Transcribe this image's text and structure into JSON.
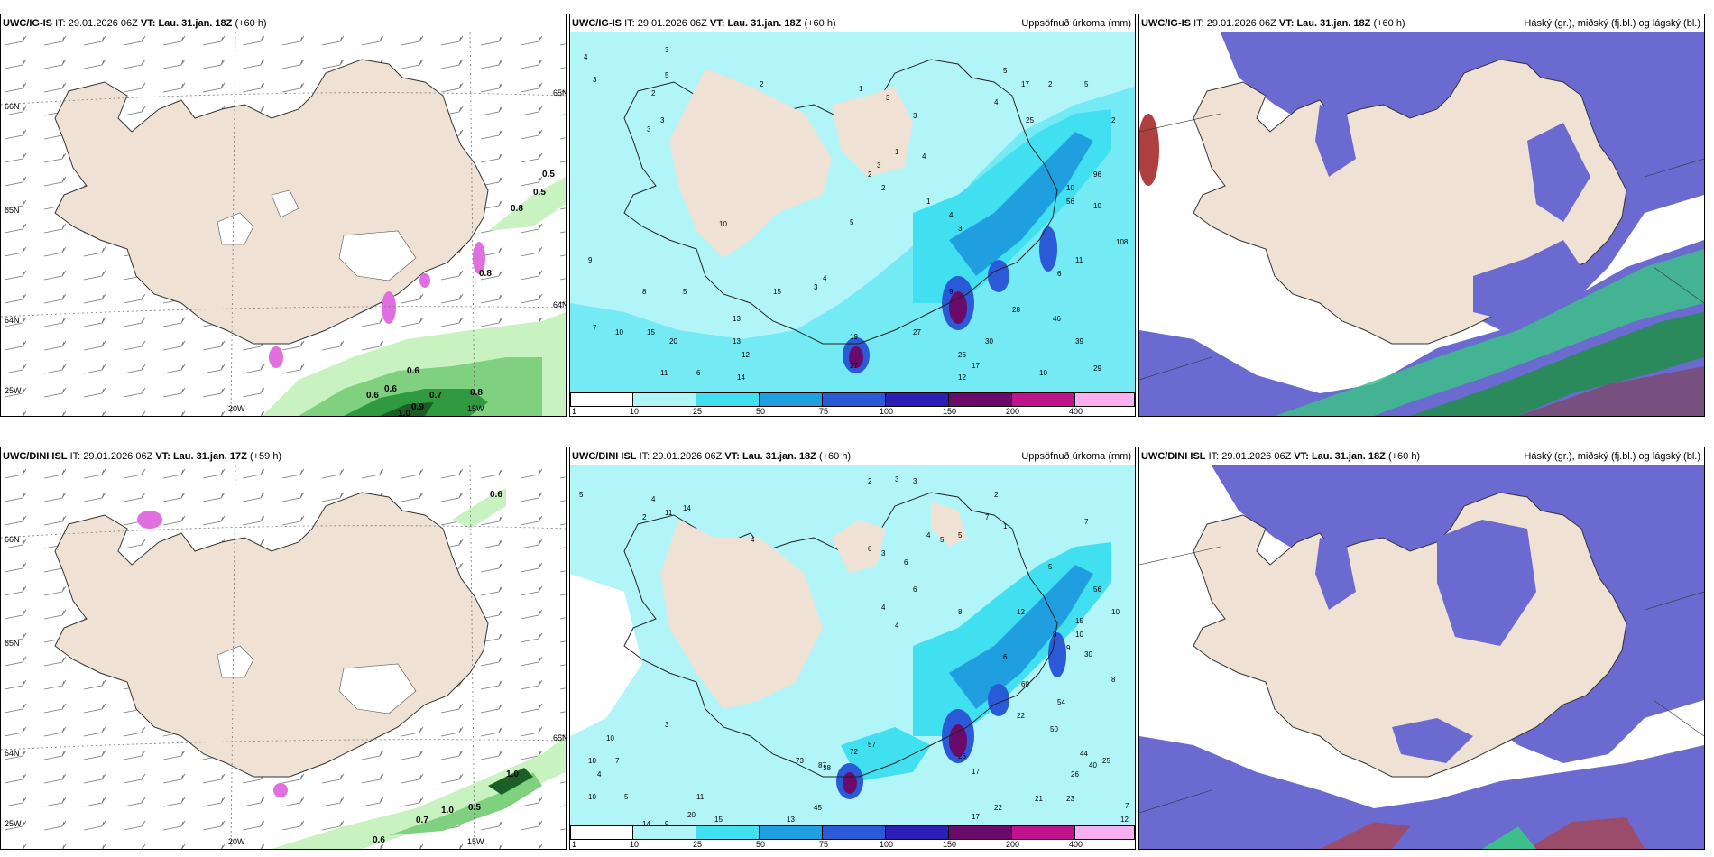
{
  "panels": [
    {
      "id": "top-left",
      "header": {
        "model": "UWC/IG-IS",
        "it_label": "IT:",
        "it_value": "29.01.2026 06Z",
        "vt_label": "VT:",
        "vt_value": "Lau. 31.jan. 18Z",
        "lead": "(+60 h)",
        "right": ""
      },
      "grid_labels": [
        "66N",
        "65N",
        "64N",
        "25W",
        "20W",
        "15W",
        "65N",
        "64N"
      ],
      "values": [
        "0.5",
        "0.5",
        "0.8",
        "0.6",
        "0.8",
        "0.6",
        "0.6",
        "0.7",
        "0.8",
        "0.9",
        "1.0"
      ]
    },
    {
      "id": "top-middle",
      "header": {
        "model": "UWC/IG-IS",
        "it_label": "IT:",
        "it_value": "29.01.2026 06Z",
        "vt_label": "VT:",
        "vt_value": "Lau. 31.jan. 18Z",
        "lead": "(+60 h)",
        "right": "Uppsöfnuð úrkoma (mm)"
      },
      "values": [
        "4",
        "3",
        "3",
        "5",
        "2",
        "3",
        "3",
        "2",
        "3",
        "3",
        "4",
        "2",
        "5",
        "5",
        "2",
        "1",
        "17",
        "25",
        "3",
        "4",
        "1",
        "2",
        "2",
        "1",
        "4",
        "3",
        "9",
        "10",
        "5",
        "8",
        "5",
        "7",
        "10",
        "15",
        "12",
        "4",
        "3",
        "13",
        "15",
        "20",
        "27",
        "9",
        "11",
        "6",
        "14",
        "26",
        "17",
        "30",
        "28",
        "46",
        "39",
        "29",
        "10",
        "12",
        "13",
        "27",
        "25",
        "19",
        "27",
        "96",
        "108",
        "10",
        "10",
        "11",
        "6",
        "56",
        "13",
        "7"
      ],
      "colorbar": {
        "labels": [
          "1",
          "10",
          "25",
          "50",
          "75",
          "100",
          "150",
          "200",
          "400"
        ],
        "colors": [
          "#ffffff",
          "#b2f5f9",
          "#40e0f0",
          "#1f9fe0",
          "#2b5ad8",
          "#2b1fb8",
          "#6a0a6a",
          "#c0148c",
          "#f010b0",
          "#f8b0f0"
        ]
      }
    },
    {
      "id": "top-right",
      "header": {
        "model": "UWC/IG-IS",
        "it_label": "IT:",
        "it_value": "29.01.2026 06Z",
        "vt_label": "VT:",
        "vt_value": "Lau. 31.jan. 18Z",
        "lead": "(+60 h)",
        "right": "Háský (gr.), miðský (fj.bl.) og lágský (bl.)"
      }
    },
    {
      "id": "bottom-left",
      "header": {
        "model": "UWC/DINI ISL",
        "it_label": "IT:",
        "it_value": "29.01.2026 06Z",
        "vt_label": "VT:",
        "vt_value": "Lau. 31.jan. 17Z",
        "lead": "(+59 h)",
        "right": ""
      },
      "grid_labels": [
        "66N",
        "65N",
        "64N",
        "25W",
        "20W",
        "15W",
        "65N"
      ],
      "values": [
        "0.6",
        "1.0",
        "0.5",
        "1.0",
        "0.7",
        "0.6"
      ]
    },
    {
      "id": "bottom-middle",
      "header": {
        "model": "UWC/DINI ISL",
        "it_label": "IT:",
        "it_value": "29.01.2026 06Z",
        "vt_label": "VT:",
        "vt_value": "Lau. 31.jan. 18Z",
        "lead": "(+60 h)",
        "right": "Uppsöfnuð úrkoma (mm)"
      },
      "values": [
        "5",
        "2",
        "4",
        "2",
        "3",
        "3",
        "2",
        "11",
        "14",
        "3",
        "4",
        "4",
        "5",
        "5",
        "6",
        "6",
        "6",
        "7",
        "1",
        "8",
        "7",
        "10",
        "3",
        "4",
        "4",
        "5",
        "8",
        "10",
        "12",
        "7",
        "4",
        "6",
        "8",
        "9",
        "10",
        "15",
        "30",
        "56",
        "60",
        "54",
        "73",
        "87",
        "72",
        "57",
        "45",
        "38",
        "26",
        "17",
        "22",
        "50",
        "44",
        "40",
        "25",
        "26",
        "21",
        "23",
        "22",
        "17",
        "13",
        "12",
        "20",
        "15",
        "9",
        "14",
        "7",
        "5",
        "11",
        "10",
        "10"
      ],
      "colorbar": {
        "labels": [
          "1",
          "10",
          "25",
          "50",
          "75",
          "100",
          "150",
          "200",
          "400"
        ],
        "colors": [
          "#ffffff",
          "#b2f5f9",
          "#40e0f0",
          "#1f9fe0",
          "#2b5ad8",
          "#2b1fb8",
          "#6a0a6a",
          "#c0148c",
          "#f010b0",
          "#f8b0f0"
        ]
      }
    },
    {
      "id": "bottom-right",
      "header": {
        "model": "UWC/DINI ISL",
        "it_label": "IT:",
        "it_value": "29.01.2026 06Z",
        "vt_label": "VT:",
        "vt_value": "Lau. 31.jan. 18Z",
        "lead": "(+60 h)",
        "right": "Háský (gr.), miðský (fj.bl.) og lágský (bl.)"
      }
    }
  ],
  "colors": {
    "land": "#efe2d4",
    "sea_precip_light": "#b2f5f9",
    "low_cloud": "#6a6ad0",
    "wind_green": "#66cc66"
  }
}
